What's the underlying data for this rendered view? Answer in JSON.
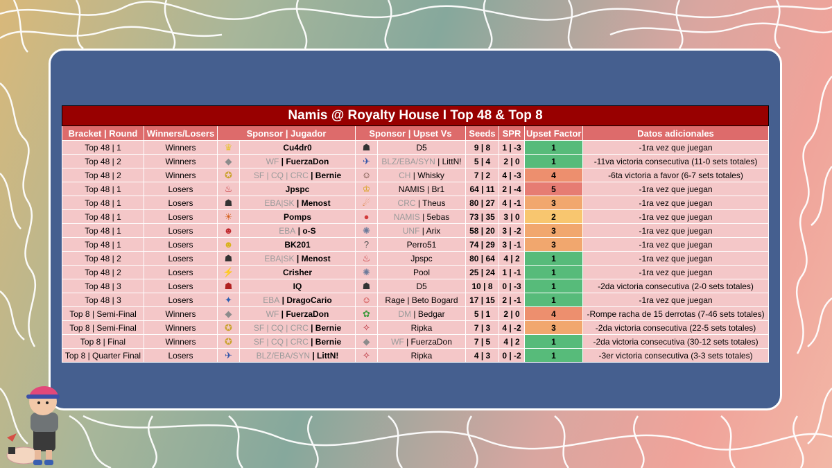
{
  "title": "Namis @ Royalty House I Top 48 & Top 8",
  "headers": [
    "Bracket | Round",
    "Winners/Losers",
    "Sponsor | Jugador",
    "Sponsor | Upset Vs",
    "Seeds",
    "SPR",
    "Upset Factor",
    "Datos adicionales"
  ],
  "colors": {
    "title_bg": "#980000",
    "header_bg": "#dd6b6b",
    "row_bg": "#f4c7c8",
    "panel_bg": "#455f8f",
    "factor_1": "#57bb7a",
    "factor_2": "#f8c66f",
    "factor_3": "#f1a76e",
    "factor_4": "#ed8f6e",
    "factor_5": "#e67c73"
  },
  "rows": [
    {
      "round": "Top 48 | 1",
      "wl": "Winners",
      "p_icon": "peach-icon",
      "p_sponsor": "",
      "player": "Cu4dr0",
      "o_icon": "byleth-icon",
      "o_sponsor": "",
      "opp": "D5",
      "seeds": "9 | 8",
      "spr": "1 | -3",
      "factor": "1",
      "info": "-1ra vez que juegan"
    },
    {
      "round": "Top 48 | 2",
      "wl": "Winners",
      "p_icon": "corrin-icon",
      "p_sponsor": "WF",
      "player": "FuerzaDon",
      "o_icon": "falco-icon",
      "o_sponsor": "BLZ/EBA/SYN",
      "opp": "LittN!",
      "seeds": "5 | 4",
      "spr": "2 | 0",
      "factor": "1",
      "info": "-11va victoria consecutiva (11-0 sets totales)"
    },
    {
      "round": "Top 48 | 2",
      "wl": "Winners",
      "p_icon": "hero-icon",
      "p_sponsor": "SF | CQ | CRC",
      "player": "Bernie",
      "o_icon": "mii-icon",
      "o_sponsor": "CH",
      "opp": "Whisky",
      "seeds": "7 | 2",
      "spr": "4 | -3",
      "factor": "4",
      "info": "-6ta victoria a favor (6-7 sets totales)"
    },
    {
      "round": "Top 48 | 1",
      "wl": "Losers",
      "p_icon": "incineroar-icon",
      "p_sponsor": "",
      "player": "Jpspc",
      "o_icon": "king-icon",
      "o_sponsor": "",
      "opp": "NAMIS | Br1",
      "seeds": "64 | 11",
      "spr": "2 | -4",
      "factor": "5",
      "info": "-1ra vez que juegan"
    },
    {
      "round": "Top 48 | 1",
      "wl": "Losers",
      "p_icon": "kazuya-icon",
      "p_sponsor": "EBA|SK",
      "player": "Menost",
      "o_icon": "charizard-icon",
      "o_sponsor": "CRC",
      "opp": "Theus",
      "seeds": "80 | 27",
      "spr": "4 | -1",
      "factor": "3",
      "info": "-1ra vez que juegan"
    },
    {
      "round": "Top 48 | 1",
      "wl": "Losers",
      "p_icon": "bowser-icon",
      "p_sponsor": "",
      "player": "Pomps",
      "o_icon": "kirby-icon",
      "o_sponsor": "NAMIS",
      "opp": "5ebas",
      "seeds": "73 | 35",
      "spr": "3 | 0",
      "factor": "2",
      "info": "-1ra vez que juegan"
    },
    {
      "round": "Top 48 | 1",
      "wl": "Losers",
      "p_icon": "diddy-icon",
      "p_sponsor": "EBA",
      "player": "o-S",
      "o_icon": "wolf-icon",
      "o_sponsor": "UNF",
      "opp": "Arix",
      "seeds": "58 | 20",
      "spr": "3 | -2",
      "factor": "3",
      "info": "-1ra vez que juegan"
    },
    {
      "round": "Top 48 | 1",
      "wl": "Losers",
      "p_icon": "wario-icon",
      "p_sponsor": "",
      "player": "BK201",
      "o_icon": "question-icon",
      "o_sponsor": "",
      "opp": "Perro51",
      "seeds": "74 | 29",
      "spr": "3 | -1",
      "factor": "3",
      "info": "-1ra vez que juegan"
    },
    {
      "round": "Top 48 | 2",
      "wl": "Losers",
      "p_icon": "kazuya-icon",
      "p_sponsor": "EBA|SK",
      "player": "Menost",
      "o_icon": "incineroar-icon",
      "o_sponsor": "",
      "opp": "Jpspc",
      "seeds": "80 | 64",
      "spr": "4 | 2",
      "factor": "1",
      "info": "-1ra vez que juegan"
    },
    {
      "round": "Top 48 | 2",
      "wl": "Losers",
      "p_icon": "pikachu-icon",
      "p_sponsor": "",
      "player": "Crisher",
      "o_icon": "wolf-icon",
      "o_sponsor": "",
      "opp": "Pool",
      "seeds": "25 | 24",
      "spr": "1 | -1",
      "factor": "1",
      "info": "-1ra vez que juegan"
    },
    {
      "round": "Top 48 | 3",
      "wl": "Losers",
      "p_icon": "ryu-icon",
      "p_sponsor": "",
      "player": "IQ",
      "o_icon": "byleth-icon",
      "o_sponsor": "",
      "opp": "D5",
      "seeds": "10 | 8",
      "spr": "0 | -3",
      "factor": "1",
      "info": "-2da victoria consecutiva (2-0 sets totales)"
    },
    {
      "round": "Top 48 | 3",
      "wl": "Losers",
      "p_icon": "lucario-icon",
      "p_sponsor": "EBA",
      "player": "DragoCario",
      "o_icon": "terry-icon",
      "o_sponsor": "",
      "opp": "Rage | Beto Bogard",
      "seeds": "17 | 15",
      "spr": "2 | -1",
      "factor": "1",
      "info": "-1ra vez que juegan"
    },
    {
      "round": "Top 8 | Semi-Final",
      "wl": "Winners",
      "p_icon": "corrin-icon",
      "p_sponsor": "WF",
      "player": "FuerzaDon",
      "o_icon": "bowserjr-icon",
      "o_sponsor": "DM",
      "opp": "Bedgar",
      "seeds": "5 | 1",
      "spr": "2 | 0",
      "factor": "4",
      "info": "-Rompe racha de 15 derrotas (7-46 sets totales)"
    },
    {
      "round": "Top 8 | Semi-Final",
      "wl": "Winners",
      "p_icon": "hero-icon",
      "p_sponsor": "SF | CQ | CRC",
      "player": "Bernie",
      "o_icon": "sephiroth-icon",
      "o_sponsor": "",
      "opp": "Ripka",
      "seeds": "7 | 3",
      "spr": "4 | -2",
      "factor": "3",
      "info": "-2da victoria consecutiva (22-5 sets totales)"
    },
    {
      "round": "Top 8 | Final",
      "wl": "Winners",
      "p_icon": "hero-icon",
      "p_sponsor": "SF | CQ | CRC",
      "player": "Bernie",
      "o_icon": "corrin-icon",
      "o_sponsor": "WF",
      "opp": "FuerzaDon",
      "seeds": "7 | 5",
      "spr": "4 | 2",
      "factor": "1",
      "info": "-2da victoria consecutiva (30-12 sets totales)"
    },
    {
      "round": "Top 8 | Quarter Final",
      "wl": "Losers",
      "p_icon": "falco-icon",
      "p_sponsor": "BLZ/EBA/SYN",
      "player": "LittN!",
      "o_icon": "sephiroth-icon",
      "o_sponsor": "",
      "opp": "Ripka",
      "seeds": "4 | 3",
      "spr": "0 | -2",
      "factor": "1",
      "info": "-3er victoria consecutiva (3-3 sets totales)"
    }
  ]
}
